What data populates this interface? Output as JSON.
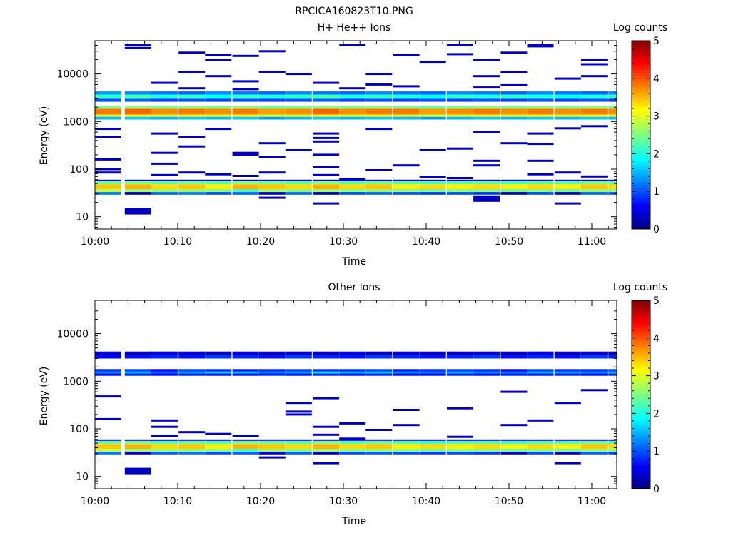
{
  "title": "RPCICA160823T10.PNG",
  "chart_data": [
    {
      "type": "heatmap",
      "panel_id": "top",
      "title": "H+ He++ Ions",
      "xlabel": "Time",
      "ylabel": "Energy (eV)",
      "x_ticks": [
        "10:00",
        "10:10",
        "10:20",
        "10:30",
        "10:40",
        "10:50",
        "11:00"
      ],
      "xlim_minutes": [
        0,
        63
      ],
      "y_scale": "log",
      "ylim": [
        5.5,
        50000
      ],
      "y_ticks": [
        10,
        100,
        1000,
        10000
      ],
      "y_tick_labels": [
        "10",
        "100",
        "1000",
        "10000"
      ],
      "colorbar": {
        "label": "Log counts",
        "min": 0,
        "max": 5,
        "ticks": [
          "0",
          "1",
          "2",
          "3",
          "4",
          "5"
        ]
      },
      "time_columns_minutes": [
        0,
        3.6,
        6.8,
        10.1,
        13.3,
        16.6,
        19.8,
        23.0,
        26.3,
        29.5,
        32.7,
        36.0,
        39.2,
        42.5,
        45.7,
        49.0,
        52.2,
        55.5,
        58.7,
        62.0
      ],
      "bands": [
        {
          "e_low": 1400,
          "e_high": 1850,
          "values": [
            3.8,
            3.9,
            3.7,
            3.8,
            3.7,
            3.8,
            3.6,
            3.7,
            3.9,
            3.7,
            3.8,
            3.8,
            3.6,
            3.7,
            3.8,
            3.7,
            3.8,
            3.7,
            3.8,
            3.7
          ]
        },
        {
          "e_low": 1250,
          "e_high": 1400,
          "values": [
            2.9,
            3.0,
            2.9,
            3.0,
            2.9,
            3.0,
            2.8,
            2.9,
            3.0,
            2.9,
            3.0,
            2.9,
            2.8,
            2.9,
            3.0,
            2.9,
            3.0,
            2.9,
            3.0,
            2.9
          ]
        },
        {
          "e_low": 1850,
          "e_high": 2100,
          "values": [
            2.5,
            2.6,
            2.5,
            2.6,
            2.5,
            2.6,
            2.4,
            2.5,
            2.6,
            2.5,
            2.6,
            2.5,
            2.4,
            2.5,
            2.6,
            2.5,
            2.6,
            2.5,
            2.6,
            2.5
          ]
        },
        {
          "e_low": 1100,
          "e_high": 1250,
          "values": [
            1.5,
            1.6,
            1.5,
            1.6,
            1.5,
            1.6,
            1.4,
            1.5,
            1.6,
            1.5,
            1.6,
            1.5,
            1.4,
            1.5,
            1.6,
            1.5,
            1.6,
            1.5,
            1.6,
            1.5
          ]
        },
        {
          "e_low": 3000,
          "e_high": 3700,
          "values": [
            2.1,
            2.2,
            2.0,
            2.1,
            1.9,
            2.1,
            2.0,
            2.1,
            2.2,
            2.0,
            2.1,
            2.0,
            1.9,
            2.1,
            2.0,
            2.1,
            2.0,
            1.9,
            2.0,
            2.1
          ]
        },
        {
          "e_low": 3700,
          "e_high": 4300,
          "values": [
            1.4,
            1.3,
            1.2,
            1.1,
            1.3,
            1.2,
            1.1,
            1.3,
            1.2,
            1.1,
            1.3,
            1.2,
            1.1,
            1.3,
            1.2,
            1.1,
            1.3,
            1.2,
            1.1,
            1.3
          ]
        },
        {
          "e_low": 2600,
          "e_high": 3000,
          "values": [
            1.0,
            1.1,
            0.9,
            1.0,
            0.9,
            1.0,
            0.9,
            1.0,
            1.1,
            0.9,
            1.0,
            0.9,
            1.0,
            0.9,
            1.0,
            0.9,
            1.0,
            0.9,
            1.0,
            0.9
          ]
        },
        {
          "e_low": 38,
          "e_high": 48,
          "values": [
            3.4,
            3.5,
            3.3,
            3.4,
            3.2,
            3.5,
            3.4,
            3.3,
            3.5,
            3.3,
            3.4,
            3.2,
            3.3,
            3.2,
            3.3,
            3.2,
            3.3,
            3.2,
            3.4,
            3.3
          ]
        },
        {
          "e_low": 48,
          "e_high": 56,
          "values": [
            2.4,
            2.5,
            2.3,
            2.4,
            2.3,
            2.5,
            2.4,
            2.3,
            2.5,
            2.3,
            2.4,
            2.3,
            2.2,
            2.3,
            2.3,
            2.2,
            2.3,
            2.3,
            2.4,
            2.3
          ]
        },
        {
          "e_low": 33,
          "e_high": 38,
          "values": [
            2.8,
            2.6,
            2.6,
            2.6,
            2.5,
            2.2,
            2.6,
            2.5,
            2.6,
            2.5,
            2.6,
            2.5,
            2.4,
            2.5,
            2.5,
            2.4,
            2.5,
            2.4,
            2.6,
            2.5
          ]
        },
        {
          "e_low": 29,
          "e_high": 33,
          "values": [
            1.2,
            0.3,
            1.1,
            1.2,
            1.0,
            1.1,
            0.4,
            1.1,
            0.3,
            1.0,
            1.1,
            1.0,
            0.9,
            1.0,
            0.9,
            0.3,
            1.0,
            0.3,
            1.1,
            1.0
          ]
        },
        {
          "e_low": 56,
          "e_high": 60,
          "values": [
            0.4,
            0.3,
            0.3,
            0.3,
            0.3,
            0.3,
            0.4,
            0.3,
            0.3,
            0.5,
            0.3,
            0.3,
            0.3,
            0.4,
            0.3,
            0.3,
            0.3,
            0.4,
            0.3,
            0.3
          ]
        }
      ],
      "sparse_cells": [
        {
          "c": 1,
          "e": 35000
        },
        {
          "c": 1,
          "e": 40000
        },
        {
          "c": 9,
          "e": 40000
        },
        {
          "c": 13,
          "e": 40000
        },
        {
          "c": 16,
          "e": 38000
        },
        {
          "c": 16,
          "e": 40000
        },
        {
          "c": 3,
          "e": 28000
        },
        {
          "c": 4,
          "e": 25000
        },
        {
          "c": 6,
          "e": 30000
        },
        {
          "c": 4,
          "e": 20000
        },
        {
          "c": 5,
          "e": 24000
        },
        {
          "c": 11,
          "e": 25000
        },
        {
          "c": 13,
          "e": 26000
        },
        {
          "c": 14,
          "e": 20000
        },
        {
          "c": 15,
          "e": 28000
        },
        {
          "c": 18,
          "e": 20000
        },
        {
          "c": 3,
          "e": 11000
        },
        {
          "c": 6,
          "e": 11000
        },
        {
          "c": 7,
          "e": 10000
        },
        {
          "c": 10,
          "e": 10000
        },
        {
          "c": 12,
          "e": 18000
        },
        {
          "c": 14,
          "e": 9000
        },
        {
          "c": 15,
          "e": 11000
        },
        {
          "c": 18,
          "e": 16000
        },
        {
          "c": 2,
          "e": 6500
        },
        {
          "c": 4,
          "e": 9000
        },
        {
          "c": 5,
          "e": 7000
        },
        {
          "c": 8,
          "e": 6500
        },
        {
          "c": 9,
          "e": 5000
        },
        {
          "c": 10,
          "e": 6000
        },
        {
          "c": 11,
          "e": 5500
        },
        {
          "c": 14,
          "e": 5200
        },
        {
          "c": 17,
          "e": 8000
        },
        {
          "c": 18,
          "e": 9000
        },
        {
          "c": 3,
          "e": 5000
        },
        {
          "c": 5,
          "e": 4800
        },
        {
          "c": 15,
          "e": 5800
        },
        {
          "c": 0,
          "e": 700
        },
        {
          "c": 0,
          "e": 480
        },
        {
          "c": 4,
          "e": 700
        },
        {
          "c": 2,
          "e": 560
        },
        {
          "c": 3,
          "e": 480
        },
        {
          "c": 8,
          "e": 560
        },
        {
          "c": 8,
          "e": 450
        },
        {
          "c": 8,
          "e": 380
        },
        {
          "c": 10,
          "e": 700
        },
        {
          "c": 14,
          "e": 600
        },
        {
          "c": 16,
          "e": 560
        },
        {
          "c": 17,
          "e": 720
        },
        {
          "c": 18,
          "e": 800
        },
        {
          "c": 3,
          "e": 300
        },
        {
          "c": 5,
          "e": 220
        },
        {
          "c": 6,
          "e": 350
        },
        {
          "c": 7,
          "e": 250
        },
        {
          "c": 13,
          "e": 270
        },
        {
          "c": 12,
          "e": 250
        },
        {
          "c": 15,
          "e": 350
        },
        {
          "c": 16,
          "e": 340
        },
        {
          "c": 0,
          "e": 160
        },
        {
          "c": 2,
          "e": 220
        },
        {
          "c": 5,
          "e": 200
        },
        {
          "c": 6,
          "e": 180
        },
        {
          "c": 8,
          "e": 200
        },
        {
          "c": 11,
          "e": 120
        },
        {
          "c": 14,
          "e": 150
        },
        {
          "c": 16,
          "e": 150
        },
        {
          "c": 2,
          "e": 130
        },
        {
          "c": 8,
          "e": 110
        },
        {
          "c": 0,
          "e": 100
        },
        {
          "c": 10,
          "e": 95
        },
        {
          "c": 14,
          "e": 120
        },
        {
          "c": 0,
          "e": 85
        },
        {
          "c": 2,
          "e": 75
        },
        {
          "c": 3,
          "e": 85
        },
        {
          "c": 4,
          "e": 78
        },
        {
          "c": 5,
          "e": 72
        },
        {
          "c": 6,
          "e": 85
        },
        {
          "c": 8,
          "e": 75
        },
        {
          "c": 9,
          "e": 62
        },
        {
          "c": 12,
          "e": 68
        },
        {
          "c": 13,
          "e": 65
        },
        {
          "c": 16,
          "e": 78
        },
        {
          "c": 17,
          "e": 85
        },
        {
          "c": 18,
          "e": 70
        },
        {
          "c": 1,
          "e": 13,
          "h": 2
        },
        {
          "c": 6,
          "e": 25
        },
        {
          "c": 8,
          "e": 19
        },
        {
          "c": 14,
          "e": 24,
          "h": 2
        },
        {
          "c": 17,
          "e": 19
        }
      ]
    },
    {
      "type": "heatmap",
      "panel_id": "bottom",
      "title": "Other Ions",
      "xlabel": "Time",
      "ylabel": "Energy (eV)",
      "x_ticks": [
        "10:00",
        "10:10",
        "10:20",
        "10:30",
        "10:40",
        "10:50",
        "11:00"
      ],
      "xlim_minutes": [
        0,
        63
      ],
      "y_scale": "log",
      "ylim": [
        5.5,
        50000
      ],
      "y_ticks": [
        10,
        100,
        1000,
        10000
      ],
      "y_tick_labels": [
        "10",
        "100",
        "1000",
        "10000"
      ],
      "colorbar": {
        "label": "Log counts",
        "min": 0,
        "max": 5,
        "ticks": [
          "0",
          "1",
          "2",
          "3",
          "4",
          "5"
        ]
      },
      "time_columns_minutes": [
        0,
        3.6,
        6.8,
        10.1,
        13.3,
        16.6,
        19.8,
        23.0,
        26.3,
        29.5,
        32.7,
        36.0,
        39.2,
        42.5,
        45.7,
        49.0,
        52.2,
        55.5,
        58.7,
        62.0
      ],
      "bands": [
        {
          "e_low": 3000,
          "e_high": 3600,
          "values": [
            0.6,
            0.7,
            0.8,
            0.7,
            0.9,
            0.8,
            0.7,
            0.9,
            0.8,
            0.7,
            0.9,
            0.8,
            0.7,
            0.8,
            0.9,
            0.7,
            0.8,
            0.7,
            0.9,
            0.8
          ]
        },
        {
          "e_low": 3600,
          "e_high": 4200,
          "values": [
            0.4,
            0.3,
            0.5,
            0.4,
            0.3,
            0.4,
            0.3,
            0.4,
            0.3,
            0.4,
            0.3,
            0.4,
            0.3,
            0.3,
            0.4,
            0.3,
            0.5,
            0.3,
            0.4,
            0.3
          ]
        },
        {
          "e_low": 1450,
          "e_high": 1600,
          "values": [
            1.3,
            1.5,
            1.1,
            1.4,
            1.7,
            1.6,
            1.2,
            1.4,
            1.8,
            1.5,
            1.6,
            1.3,
            1.2,
            1.5,
            1.3,
            1.2,
            1.5,
            1.4,
            1.3,
            1.5
          ]
        },
        {
          "e_low": 1600,
          "e_high": 1800,
          "values": [
            0.8,
            0.9,
            0.6,
            0.9,
            0.8,
            0.7,
            0.8,
            0.9,
            0.8,
            0.8,
            0.9,
            0.7,
            0.8,
            0.9,
            0.8,
            0.6,
            0.9,
            0.8,
            0.8,
            0.9
          ]
        },
        {
          "e_low": 1300,
          "e_high": 1450,
          "values": [
            0.7,
            0.8,
            0.7,
            0.8,
            0.7,
            0.7,
            0.8,
            0.7,
            0.8,
            0.7,
            0.8,
            0.7,
            0.7,
            0.8,
            0.7,
            0.8,
            0.7,
            0.8,
            0.7,
            0.8
          ]
        },
        {
          "e_low": 38,
          "e_high": 48,
          "values": [
            3.4,
            3.5,
            3.3,
            3.4,
            3.2,
            3.5,
            3.4,
            3.3,
            3.5,
            3.3,
            3.4,
            3.2,
            3.3,
            3.2,
            3.3,
            3.2,
            3.3,
            3.2,
            3.4,
            3.3
          ]
        },
        {
          "e_low": 48,
          "e_high": 56,
          "values": [
            2.4,
            2.5,
            2.3,
            2.4,
            2.3,
            2.5,
            2.4,
            2.3,
            2.5,
            2.3,
            2.4,
            2.3,
            2.2,
            2.3,
            2.3,
            2.2,
            2.3,
            2.3,
            2.4,
            2.3
          ]
        },
        {
          "e_low": 33,
          "e_high": 38,
          "values": [
            2.8,
            2.6,
            2.6,
            2.6,
            2.5,
            2.2,
            2.6,
            2.5,
            2.6,
            2.5,
            2.6,
            2.5,
            2.4,
            2.5,
            2.5,
            2.4,
            2.5,
            2.4,
            2.6,
            2.5
          ]
        },
        {
          "e_low": 29,
          "e_high": 33,
          "values": [
            1.2,
            0.3,
            1.1,
            1.2,
            1.0,
            1.1,
            0.4,
            1.1,
            0.3,
            1.0,
            1.1,
            1.0,
            0.9,
            1.0,
            0.9,
            0.3,
            1.0,
            0.3,
            1.1,
            1.0
          ]
        },
        {
          "e_low": 56,
          "e_high": 60,
          "values": [
            0.4,
            0.3,
            0.3,
            0.3,
            0.3,
            0.3,
            0.4,
            0.3,
            0.3,
            0.5,
            0.3,
            0.3,
            0.3,
            0.4,
            0.3,
            0.3,
            0.3,
            0.4,
            0.3,
            0.3
          ]
        }
      ],
      "sparse_cells": [
        {
          "c": 0,
          "e": 480
        },
        {
          "c": 0,
          "e": 160
        },
        {
          "c": 2,
          "e": 150
        },
        {
          "c": 2,
          "e": 110
        },
        {
          "c": 2,
          "e": 72
        },
        {
          "c": 3,
          "e": 85
        },
        {
          "c": 4,
          "e": 78
        },
        {
          "c": 5,
          "e": 72
        },
        {
          "c": 7,
          "e": 350
        },
        {
          "c": 7,
          "e": 230
        },
        {
          "c": 7,
          "e": 200
        },
        {
          "c": 8,
          "e": 440
        },
        {
          "c": 8,
          "e": 110
        },
        {
          "c": 8,
          "e": 75
        },
        {
          "c": 9,
          "e": 130
        },
        {
          "c": 9,
          "e": 62
        },
        {
          "c": 10,
          "e": 95
        },
        {
          "c": 11,
          "e": 250
        },
        {
          "c": 11,
          "e": 120
        },
        {
          "c": 13,
          "e": 270
        },
        {
          "c": 13,
          "e": 68
        },
        {
          "c": 15,
          "e": 600
        },
        {
          "c": 15,
          "e": 120
        },
        {
          "c": 16,
          "e": 150
        },
        {
          "c": 17,
          "e": 350
        },
        {
          "c": 18,
          "e": 650
        },
        {
          "c": 1,
          "e": 13,
          "h": 2
        },
        {
          "c": 6,
          "e": 25
        },
        {
          "c": 8,
          "e": 19
        },
        {
          "c": 17,
          "e": 19
        }
      ]
    }
  ]
}
